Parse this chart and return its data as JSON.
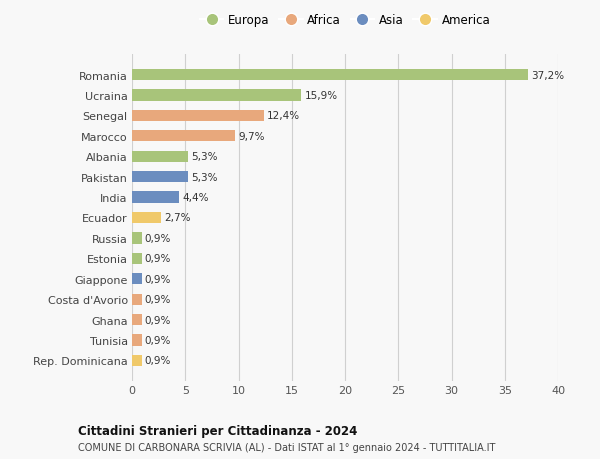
{
  "countries": [
    "Romania",
    "Ucraina",
    "Senegal",
    "Marocco",
    "Albania",
    "Pakistan",
    "India",
    "Ecuador",
    "Russia",
    "Estonia",
    "Giappone",
    "Costa d'Avorio",
    "Ghana",
    "Tunisia",
    "Rep. Dominicana"
  ],
  "values": [
    37.2,
    15.9,
    12.4,
    9.7,
    5.3,
    5.3,
    4.4,
    2.7,
    0.9,
    0.9,
    0.9,
    0.9,
    0.9,
    0.9,
    0.9
  ],
  "labels": [
    "37,2%",
    "15,9%",
    "12,4%",
    "9,7%",
    "5,3%",
    "5,3%",
    "4,4%",
    "2,7%",
    "0,9%",
    "0,9%",
    "0,9%",
    "0,9%",
    "0,9%",
    "0,9%",
    "0,9%"
  ],
  "continents": [
    "Europa",
    "Europa",
    "Africa",
    "Africa",
    "Europa",
    "Asia",
    "Asia",
    "America",
    "Europa",
    "Europa",
    "Asia",
    "Africa",
    "Africa",
    "Africa",
    "America"
  ],
  "colors": {
    "Europa": "#a8c47a",
    "Africa": "#e8a87c",
    "Asia": "#6b8dbf",
    "America": "#f0c96a"
  },
  "legend_order": [
    "Europa",
    "Africa",
    "Asia",
    "America"
  ],
  "title": "Cittadini Stranieri per Cittadinanza - 2024",
  "subtitle": "COMUNE DI CARBONARA SCRIVIA (AL) - Dati ISTAT al 1° gennaio 2024 - TUTTITALIA.IT",
  "xlim": [
    0,
    40
  ],
  "xticks": [
    0,
    5,
    10,
    15,
    20,
    25,
    30,
    35,
    40
  ],
  "background_color": "#f8f8f8",
  "grid_color": "#d0d0d0"
}
